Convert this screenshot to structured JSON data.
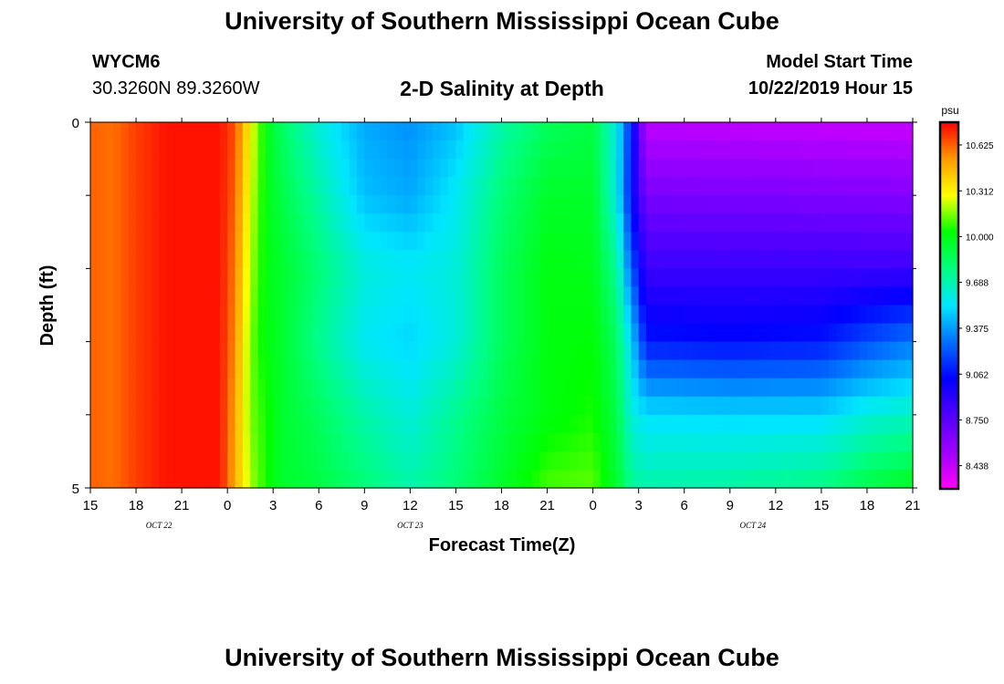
{
  "header": {
    "title": "University of Southern Mississippi Ocean Cube",
    "station": "WYCM6",
    "coordinates": "30.3260N 89.3260W",
    "subtitle": "2-D Salinity at Depth",
    "model_start_label": "Model Start Time",
    "model_start_value": "10/22/2019 Hour 15"
  },
  "footer": {
    "title": "University of Southern Mississippi Ocean Cube"
  },
  "chart_data": {
    "type": "heatmap",
    "title": "2-D Salinity at Depth",
    "xlabel": "Forecast Time(Z)",
    "ylabel": "Depth (ft)",
    "x_range_hours": [
      0,
      54
    ],
    "x_ticks": [
      {
        "h": 0,
        "label": "15"
      },
      {
        "h": 3,
        "label": "18"
      },
      {
        "h": 6,
        "label": "21"
      },
      {
        "h": 9,
        "label": "0"
      },
      {
        "h": 12,
        "label": "3"
      },
      {
        "h": 15,
        "label": "6"
      },
      {
        "h": 18,
        "label": "9"
      },
      {
        "h": 21,
        "label": "12"
      },
      {
        "h": 24,
        "label": "15"
      },
      {
        "h": 27,
        "label": "18"
      },
      {
        "h": 30,
        "label": "21"
      },
      {
        "h": 33,
        "label": "0"
      },
      {
        "h": 36,
        "label": "3"
      },
      {
        "h": 39,
        "label": "6"
      },
      {
        "h": 42,
        "label": "9"
      },
      {
        "h": 45,
        "label": "12"
      },
      {
        "h": 48,
        "label": "15"
      },
      {
        "h": 51,
        "label": "18"
      },
      {
        "h": 54,
        "label": "21"
      }
    ],
    "date_labels": [
      {
        "h": 4.5,
        "label": "OCT 22"
      },
      {
        "h": 21,
        "label": "OCT 23"
      },
      {
        "h": 43.5,
        "label": "OCT 24"
      }
    ],
    "y_range": [
      0,
      5
    ],
    "y_tick_labels": [
      {
        "v": 0,
        "label": "0"
      },
      {
        "v": 5,
        "label": "5"
      }
    ],
    "y_minor_ticks": [
      1,
      2,
      3,
      4
    ],
    "depth_layers": [
      0,
      1,
      2,
      3,
      4
    ],
    "colorbar": {
      "unit": "psu",
      "min": 8.28,
      "max": 10.78,
      "tick_values": [
        10.625,
        10.312,
        10.0,
        9.688,
        9.375,
        9.062,
        8.75,
        8.438
      ],
      "tick_labels": [
        "10.625",
        "10.312",
        "10.000",
        "9.688",
        "9.375",
        "9.062",
        "8.750",
        "8.438"
      ],
      "colors_low_to_high": [
        "#ff00ff",
        "#a000ff",
        "#5000ff",
        "#0000ff",
        "#0070ff",
        "#00e6ff",
        "#00ff80",
        "#00ff00",
        "#ffff00",
        "#ff9900",
        "#ff0000"
      ]
    },
    "layer_profiles": [
      {
        "depth_top": 0,
        "points": [
          [
            0,
            10.62
          ],
          [
            1.5,
            10.6
          ],
          [
            3,
            10.68
          ],
          [
            5,
            10.75
          ],
          [
            8.5,
            10.75
          ],
          [
            9.5,
            10.65
          ],
          [
            10.5,
            10.3
          ],
          [
            11.5,
            10.0
          ],
          [
            12.5,
            9.85
          ],
          [
            15,
            9.6
          ],
          [
            18,
            9.4
          ],
          [
            21,
            9.35
          ],
          [
            24,
            9.45
          ],
          [
            27,
            9.7
          ],
          [
            30,
            9.85
          ],
          [
            33,
            9.9
          ],
          [
            34.5,
            9.6
          ],
          [
            35.5,
            9.1
          ],
          [
            36.5,
            8.45
          ],
          [
            54,
            8.42
          ]
        ]
      },
      {
        "depth_top": 1,
        "points": [
          [
            0,
            10.62
          ],
          [
            1.5,
            10.6
          ],
          [
            3,
            10.68
          ],
          [
            5,
            10.75
          ],
          [
            8.5,
            10.75
          ],
          [
            9.5,
            10.62
          ],
          [
            10.5,
            10.25
          ],
          [
            11.5,
            10.0
          ],
          [
            12.5,
            9.9
          ],
          [
            15,
            9.7
          ],
          [
            18,
            9.45
          ],
          [
            21,
            9.4
          ],
          [
            24,
            9.55
          ],
          [
            27,
            9.8
          ],
          [
            30,
            9.95
          ],
          [
            33,
            9.95
          ],
          [
            34.5,
            9.6
          ],
          [
            35.5,
            9.05
          ],
          [
            36.5,
            8.65
          ],
          [
            54,
            8.62
          ]
        ]
      },
      {
        "depth_top": 2,
        "points": [
          [
            0,
            10.62
          ],
          [
            1.5,
            10.6
          ],
          [
            3,
            10.68
          ],
          [
            5,
            10.75
          ],
          [
            8.5,
            10.75
          ],
          [
            9.5,
            10.58
          ],
          [
            10.5,
            10.2
          ],
          [
            11.5,
            10.0
          ],
          [
            12.5,
            9.95
          ],
          [
            15,
            9.8
          ],
          [
            18,
            9.6
          ],
          [
            21,
            9.55
          ],
          [
            24,
            9.6
          ],
          [
            27,
            9.85
          ],
          [
            30,
            10.0
          ],
          [
            33,
            9.98
          ],
          [
            34.5,
            9.75
          ],
          [
            35.5,
            9.25
          ],
          [
            36.5,
            8.85
          ],
          [
            54,
            8.85
          ]
        ]
      },
      {
        "depth_top": 3,
        "points": [
          [
            0,
            10.62
          ],
          [
            1.5,
            10.6
          ],
          [
            3,
            10.68
          ],
          [
            5,
            10.75
          ],
          [
            8.5,
            10.75
          ],
          [
            9.5,
            10.55
          ],
          [
            10.5,
            10.15
          ],
          [
            11.5,
            10.0
          ],
          [
            12.5,
            9.95
          ],
          [
            15,
            9.75
          ],
          [
            18,
            9.55
          ],
          [
            21,
            9.5
          ],
          [
            24,
            9.6
          ],
          [
            27,
            9.85
          ],
          [
            30,
            10.0
          ],
          [
            33,
            10.02
          ],
          [
            34.5,
            9.85
          ],
          [
            35.5,
            9.5
          ],
          [
            36.5,
            9.08
          ],
          [
            42,
            9.05
          ],
          [
            48,
            9.08
          ],
          [
            51,
            9.2
          ],
          [
            54,
            9.3
          ]
        ]
      },
      {
        "depth_top": 4,
        "points": [
          [
            0,
            10.62
          ],
          [
            1.5,
            10.6
          ],
          [
            3,
            10.68
          ],
          [
            5,
            10.75
          ],
          [
            8.5,
            10.75
          ],
          [
            9.5,
            10.5
          ],
          [
            10.5,
            10.15
          ],
          [
            11.5,
            10.05
          ],
          [
            12.5,
            9.95
          ],
          [
            15,
            9.85
          ],
          [
            18,
            9.7
          ],
          [
            21,
            9.6
          ],
          [
            24,
            9.75
          ],
          [
            27,
            9.9
          ],
          [
            30,
            10.0
          ],
          [
            33,
            10.05
          ],
          [
            34.5,
            9.9
          ],
          [
            35.5,
            9.6
          ],
          [
            36.5,
            9.52
          ],
          [
            42,
            9.5
          ],
          [
            48,
            9.5
          ],
          [
            51,
            9.6
          ],
          [
            54,
            9.65
          ]
        ]
      },
      {
        "depth_top": 5,
        "points": [
          [
            0,
            10.62
          ],
          [
            1.5,
            10.6
          ],
          [
            3,
            10.68
          ],
          [
            5,
            10.75
          ],
          [
            8.5,
            10.75
          ],
          [
            9.5,
            10.48
          ],
          [
            10.5,
            10.2
          ],
          [
            11.5,
            10.05
          ],
          [
            12.5,
            9.95
          ],
          [
            15,
            9.9
          ],
          [
            18,
            9.8
          ],
          [
            21,
            9.7
          ],
          [
            24,
            9.8
          ],
          [
            27,
            9.95
          ],
          [
            30,
            10.1
          ],
          [
            33,
            10.12
          ],
          [
            34.5,
            9.95
          ],
          [
            35.5,
            9.75
          ],
          [
            36.5,
            9.7
          ],
          [
            42,
            9.72
          ],
          [
            48,
            9.78
          ],
          [
            51,
            9.9
          ],
          [
            54,
            9.98
          ]
        ]
      }
    ]
  }
}
